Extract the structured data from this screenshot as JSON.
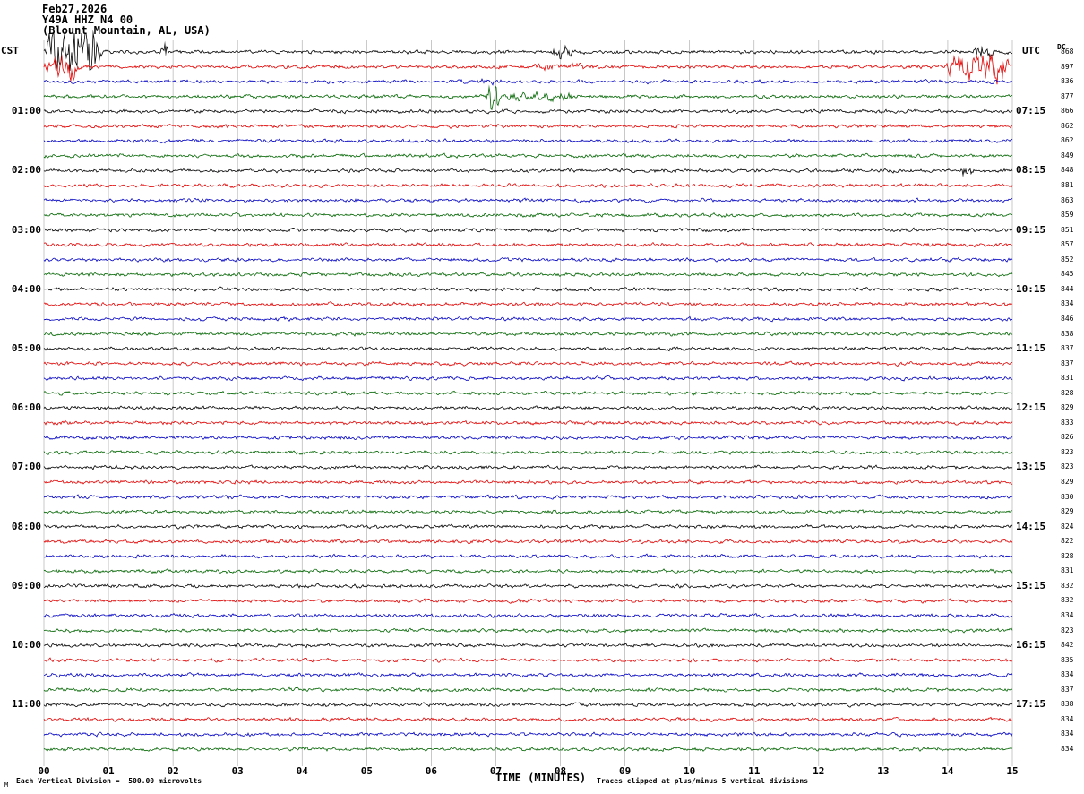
{
  "header": {
    "date": "Feb27,2026",
    "station_id": "Y49A HHZ N4 00",
    "station_name": "(Blount Mountain, AL, USA)"
  },
  "axes": {
    "left_tz_label": "CST",
    "right_tz_label": "UTC",
    "dc_column_label": "DC",
    "x_axis_title": "TIME (MINUTES)",
    "x_tick_labels": [
      "00",
      "01",
      "02",
      "03",
      "04",
      "05",
      "06",
      "07",
      "08",
      "09",
      "10",
      "11",
      "12",
      "13",
      "14",
      "15"
    ]
  },
  "footer": {
    "scale_note": "Each Vertical Division =  500.00 microvolts",
    "clip_note": "Traces clipped at plus/minus 5 vertical divisions",
    "corner_mark": "M"
  },
  "chart_data": {
    "type": "line",
    "subtype": "helicorder-seismogram",
    "title": "Y49A HHZ N4 00 (Blount Mountain, AL, USA) Feb27,2026",
    "xlabel": "TIME (MINUTES)",
    "x_range_minutes": [
      0,
      15
    ],
    "minutes_per_row": 15,
    "vertical_division_microvolts": 500.0,
    "clip_divisions": 5,
    "grid": "vertical lines every 1 minute",
    "trace_color_cycle": [
      "#000000",
      "#e00000",
      "#0000c0",
      "#006400"
    ],
    "rows": [
      {
        "left_label": "",
        "right_label": "",
        "dc": 868
      },
      {
        "left_label": "",
        "right_label": "",
        "dc": 897
      },
      {
        "left_label": "",
        "right_label": "",
        "dc": 836
      },
      {
        "left_label": "",
        "right_label": "",
        "dc": 877
      },
      {
        "left_label": "01:00",
        "right_label": "07:15",
        "dc": 866
      },
      {
        "left_label": "",
        "right_label": "",
        "dc": 862
      },
      {
        "left_label": "",
        "right_label": "",
        "dc": 862
      },
      {
        "left_label": "",
        "right_label": "",
        "dc": 849
      },
      {
        "left_label": "02:00",
        "right_label": "08:15",
        "dc": 848
      },
      {
        "left_label": "",
        "right_label": "",
        "dc": 881
      },
      {
        "left_label": "",
        "right_label": "",
        "dc": 863
      },
      {
        "left_label": "",
        "right_label": "",
        "dc": 859
      },
      {
        "left_label": "03:00",
        "right_label": "09:15",
        "dc": 851
      },
      {
        "left_label": "",
        "right_label": "",
        "dc": 857
      },
      {
        "left_label": "",
        "right_label": "",
        "dc": 852
      },
      {
        "left_label": "",
        "right_label": "",
        "dc": 845
      },
      {
        "left_label": "04:00",
        "right_label": "10:15",
        "dc": 844
      },
      {
        "left_label": "",
        "right_label": "",
        "dc": 834
      },
      {
        "left_label": "",
        "right_label": "",
        "dc": 846
      },
      {
        "left_label": "",
        "right_label": "",
        "dc": 838
      },
      {
        "left_label": "05:00",
        "right_label": "11:15",
        "dc": 837
      },
      {
        "left_label": "",
        "right_label": "",
        "dc": 837
      },
      {
        "left_label": "",
        "right_label": "",
        "dc": 831
      },
      {
        "left_label": "",
        "right_label": "",
        "dc": 828
      },
      {
        "left_label": "06:00",
        "right_label": "12:15",
        "dc": 829
      },
      {
        "left_label": "",
        "right_label": "",
        "dc": 833
      },
      {
        "left_label": "",
        "right_label": "",
        "dc": 826
      },
      {
        "left_label": "",
        "right_label": "",
        "dc": 823
      },
      {
        "left_label": "07:00",
        "right_label": "13:15",
        "dc": 823
      },
      {
        "left_label": "",
        "right_label": "",
        "dc": 829
      },
      {
        "left_label": "",
        "right_label": "",
        "dc": 830
      },
      {
        "left_label": "",
        "right_label": "",
        "dc": 829
      },
      {
        "left_label": "08:00",
        "right_label": "14:15",
        "dc": 824
      },
      {
        "left_label": "",
        "right_label": "",
        "dc": 822
      },
      {
        "left_label": "",
        "right_label": "",
        "dc": 828
      },
      {
        "left_label": "",
        "right_label": "",
        "dc": 831
      },
      {
        "left_label": "09:00",
        "right_label": "15:15",
        "dc": 832
      },
      {
        "left_label": "",
        "right_label": "",
        "dc": 832
      },
      {
        "left_label": "",
        "right_label": "",
        "dc": 834
      },
      {
        "left_label": "",
        "right_label": "",
        "dc": 823
      },
      {
        "left_label": "10:00",
        "right_label": "16:15",
        "dc": 842
      },
      {
        "left_label": "",
        "right_label": "",
        "dc": 835
      },
      {
        "left_label": "",
        "right_label": "",
        "dc": 834
      },
      {
        "left_label": "",
        "right_label": "",
        "dc": 837
      },
      {
        "left_label": "11:00",
        "right_label": "17:15",
        "dc": 838
      },
      {
        "left_label": "",
        "right_label": "",
        "dc": 834
      },
      {
        "left_label": "",
        "right_label": "",
        "dc": 834
      },
      {
        "left_label": "",
        "right_label": "",
        "dc": 834
      }
    ],
    "events": [
      {
        "row": 0,
        "start": 0.0,
        "end": 0.9,
        "amp": 30,
        "note": "clipped burst at trace start"
      },
      {
        "row": 0,
        "start": 1.75,
        "end": 1.95,
        "amp": 10,
        "note": "spike"
      },
      {
        "row": 0,
        "start": 7.85,
        "end": 8.2,
        "amp": 8,
        "note": "small burst"
      },
      {
        "row": 0,
        "start": 14.35,
        "end": 14.8,
        "amp": 8,
        "note": "small burst"
      },
      {
        "row": 1,
        "start": 0.0,
        "end": 0.55,
        "amp": 14,
        "note": "burst at start"
      },
      {
        "row": 1,
        "start": 7.4,
        "end": 8.5,
        "amp": 4,
        "note": "elevated noise"
      },
      {
        "row": 1,
        "start": 13.95,
        "end": 15.0,
        "amp": 16,
        "note": "large burst at end of row"
      },
      {
        "row": 2,
        "start": 6.4,
        "end": 7.15,
        "amp": 4,
        "note": "elevated noise"
      },
      {
        "row": 3,
        "start": 6.6,
        "end": 8.4,
        "amp": 5,
        "note": "event coda"
      },
      {
        "row": 3,
        "start": 6.85,
        "end": 7.05,
        "amp": 16,
        "note": "event spike"
      },
      {
        "row": 8,
        "start": 14.15,
        "end": 14.45,
        "amp": 7,
        "note": "spike"
      }
    ],
    "note": "Continuous microseismic background noise on all 48 quarter-hour traces; waveform values are not individually readable at screenshot scale."
  }
}
